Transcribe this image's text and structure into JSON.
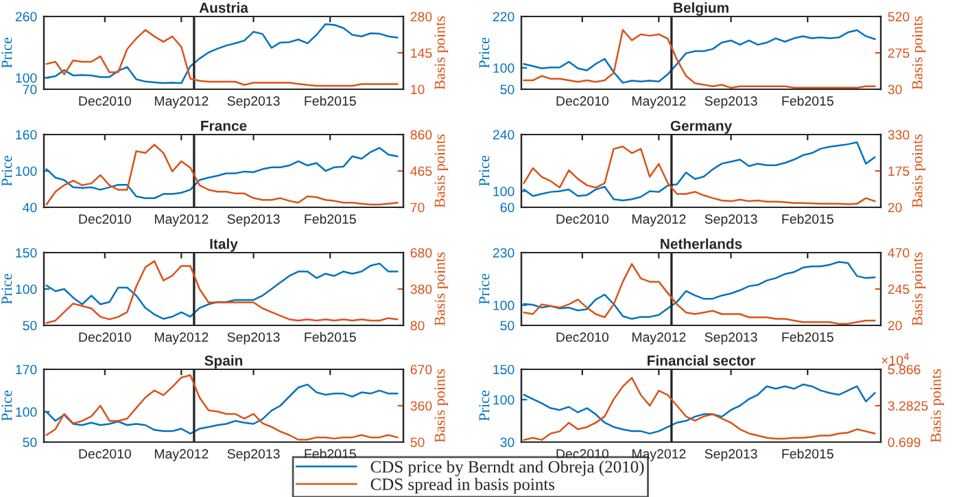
{
  "chart_data": [
    {
      "type": "line",
      "title": "Austria",
      "ylabel": "Price",
      "y2label": "Basis points",
      "legend": "bottom",
      "xlim": [
        "2009-10-15",
        "2016-06-10"
      ],
      "xticks": [
        {
          "value": "2010-12-01",
          "label": "Dec2010"
        },
        {
          "value": "2012-05-01",
          "label": "May2012"
        },
        {
          "value": "2013-09-01",
          "label": "Sep2013"
        },
        {
          "value": "2015-02-01",
          "label": "Feb2015"
        }
      ],
      "ylim": [
        70,
        260
      ],
      "yticks": [
        70,
        100,
        260
      ],
      "y2lim": [
        10,
        280
      ],
      "y2ticks": [
        10,
        145,
        280
      ],
      "ref_lines": [
        {
          "axis": "x",
          "value": "2012-07-26",
          "color": "#262626"
        }
      ],
      "x": [
        "2009-11",
        "2010-01",
        "2010-03",
        "2010-05",
        "2010-07",
        "2010-09",
        "2010-11",
        "2011-01",
        "2011-03",
        "2011-05",
        "2011-07",
        "2011-09",
        "2011-11",
        "2012-01",
        "2012-03",
        "2012-05",
        "2012-07",
        "2012-09",
        "2012-11",
        "2013-01",
        "2013-03",
        "2013-05",
        "2013-07",
        "2013-09",
        "2013-11",
        "2014-01",
        "2014-03",
        "2014-05",
        "2014-07",
        "2014-09",
        "2014-11",
        "2015-01",
        "2015-03",
        "2015-05",
        "2015-07",
        "2015-09",
        "2015-11",
        "2016-01",
        "2016-03",
        "2016-05"
      ],
      "series": [
        {
          "name": "CDS price by Berndt and Obreja (2010)",
          "color": "#0072bd",
          "values": [
            100,
            104,
            120,
            106,
            107,
            106,
            102,
            102,
            118,
            128,
            96,
            90,
            88,
            86,
            87,
            86,
            130,
            150,
            166,
            176,
            184,
            190,
            197,
            220,
            214,
            178,
            192,
            193,
            200,
            190,
            212,
            240,
            238,
            230,
            212,
            208,
            216,
            215,
            208,
            205
          ]
        },
        {
          "name": "CDS spread in basis points",
          "color": "#d95319",
          "axis": "y2",
          "values": [
            104,
            112,
            65,
            117,
            112,
            112,
            132,
            73,
            73,
            159,
            198,
            230,
            206,
            186,
            206,
            167,
            49,
            41,
            38,
            38,
            38,
            38,
            26,
            34,
            34,
            34,
            34,
            34,
            30,
            26,
            23,
            23,
            23,
            23,
            23,
            29,
            29,
            29,
            29,
            29
          ]
        }
      ]
    },
    {
      "type": "line",
      "title": "Belgium",
      "ylabel": "Price",
      "y2label": "Basis points",
      "xlim": [
        "2009-10-15",
        "2016-06-10"
      ],
      "xticks": [
        {
          "value": "2010-12-01",
          "label": "Dec2010"
        },
        {
          "value": "2012-05-01",
          "label": "May2012"
        },
        {
          "value": "2013-09-01",
          "label": "Sep2013"
        },
        {
          "value": "2015-02-01",
          "label": "Feb2015"
        }
      ],
      "ylim": [
        50,
        220
      ],
      "yticks": [
        50,
        100,
        220
      ],
      "y2lim": [
        30,
        520
      ],
      "y2ticks": [
        30,
        275,
        520
      ],
      "ref_lines": [
        {
          "axis": "x",
          "value": "2012-07-26",
          "color": "#262626"
        }
      ],
      "x": [
        "2009-11",
        "2010-01",
        "2010-03",
        "2010-05",
        "2010-07",
        "2010-09",
        "2010-11",
        "2011-01",
        "2011-03",
        "2011-05",
        "2011-07",
        "2011-09",
        "2011-11",
        "2012-01",
        "2012-03",
        "2012-05",
        "2012-07",
        "2012-09",
        "2012-11",
        "2013-01",
        "2013-03",
        "2013-05",
        "2013-07",
        "2013-09",
        "2013-11",
        "2014-01",
        "2014-03",
        "2014-05",
        "2014-07",
        "2014-09",
        "2014-11",
        "2015-01",
        "2015-03",
        "2015-05",
        "2015-07",
        "2015-09",
        "2015-11",
        "2016-01",
        "2016-03",
        "2016-05"
      ],
      "series": [
        {
          "color": "#0072bd",
          "values": [
            109,
            104,
            99,
            101,
            101,
            114,
            99,
            94,
            109,
            121,
            90,
            65,
            70,
            68,
            70,
            68,
            85,
            109,
            134,
            139,
            139,
            144,
            159,
            164,
            154,
            164,
            154,
            159,
            169,
            161,
            169,
            174,
            169,
            171,
            169,
            171,
            183,
            188,
            174,
            167
          ]
        },
        {
          "color": "#d95319",
          "axis": "y2",
          "values": [
            90,
            90,
            120,
            100,
            100,
            90,
            80,
            90,
            80,
            90,
            140,
            430,
            360,
            400,
            390,
            400,
            370,
            230,
            120,
            70,
            60,
            50,
            60,
            40,
            50,
            50,
            50,
            50,
            50,
            50,
            40,
            40,
            40,
            40,
            40,
            40,
            40,
            40,
            50,
            50
          ]
        }
      ]
    },
    {
      "type": "line",
      "title": "France",
      "ylabel": "Price",
      "y2label": "Basis points",
      "xlim": [
        "2009-10-15",
        "2016-06-10"
      ],
      "xticks": [
        {
          "value": "2010-12-01",
          "label": "Dec2010"
        },
        {
          "value": "2012-05-01",
          "label": "May2012"
        },
        {
          "value": "2013-09-01",
          "label": "Sep2013"
        },
        {
          "value": "2015-02-01",
          "label": "Feb2015"
        }
      ],
      "ylim": [
        40,
        160
      ],
      "yticks": [
        40,
        100,
        160
      ],
      "y2lim": [
        70,
        860
      ],
      "y2ticks": [
        70,
        465,
        860
      ],
      "ref_lines": [
        {
          "axis": "x",
          "value": "2012-07-26",
          "color": "#262626"
        }
      ],
      "x": [
        "2009-11",
        "2010-01",
        "2010-03",
        "2010-05",
        "2010-07",
        "2010-09",
        "2010-11",
        "2011-01",
        "2011-03",
        "2011-05",
        "2011-07",
        "2011-09",
        "2011-11",
        "2012-01",
        "2012-03",
        "2012-05",
        "2012-07",
        "2012-09",
        "2012-11",
        "2013-01",
        "2013-03",
        "2013-05",
        "2013-07",
        "2013-09",
        "2013-11",
        "2014-01",
        "2014-03",
        "2014-05",
        "2014-07",
        "2014-09",
        "2014-11",
        "2015-01",
        "2015-03",
        "2015-05",
        "2015-07",
        "2015-09",
        "2015-11",
        "2016-01",
        "2016-03",
        "2016-05"
      ],
      "series": [
        {
          "color": "#0072bd",
          "values": [
            103,
            89,
            85,
            73,
            72,
            73,
            69,
            73,
            77,
            77,
            58,
            55,
            55,
            62,
            62,
            64,
            69,
            85,
            89,
            92,
            96,
            96,
            99,
            98,
            103,
            106,
            106,
            109,
            116,
            109,
            113,
            100,
            106,
            107,
            124,
            120,
            131,
            138,
            127,
            124
          ]
        },
        {
          "color": "#d95319",
          "axis": "y2",
          "values": [
            100,
            240,
            310,
            360,
            310,
            330,
            420,
            310,
            260,
            260,
            680,
            660,
            750,
            660,
            460,
            570,
            500,
            310,
            260,
            240,
            240,
            220,
            220,
            170,
            150,
            150,
            170,
            140,
            120,
            190,
            180,
            150,
            140,
            120,
            120,
            110,
            100,
            100,
            110,
            120
          ]
        }
      ]
    },
    {
      "type": "line",
      "title": "Germany",
      "ylabel": "Price",
      "y2label": "Basis points",
      "xlim": [
        "2009-10-15",
        "2016-06-10"
      ],
      "xticks": [
        {
          "value": "2010-12-01",
          "label": "Dec2010"
        },
        {
          "value": "2012-05-01",
          "label": "May2012"
        },
        {
          "value": "2013-09-01",
          "label": "Sep2013"
        },
        {
          "value": "2015-02-01",
          "label": "Feb2015"
        }
      ],
      "ylim": [
        60,
        240
      ],
      "yticks": [
        60,
        100,
        240
      ],
      "y2lim": [
        20,
        330
      ],
      "y2ticks": [
        20,
        175,
        330
      ],
      "ref_lines": [
        {
          "axis": "x",
          "value": "2012-07-26",
          "color": "#262626"
        }
      ],
      "x": [
        "2009-11",
        "2010-01",
        "2010-03",
        "2010-05",
        "2010-07",
        "2010-09",
        "2010-11",
        "2011-01",
        "2011-03",
        "2011-05",
        "2011-07",
        "2011-09",
        "2011-11",
        "2012-01",
        "2012-03",
        "2012-05",
        "2012-07",
        "2012-09",
        "2012-11",
        "2013-01",
        "2013-03",
        "2013-05",
        "2013-07",
        "2013-09",
        "2013-11",
        "2014-01",
        "2014-03",
        "2014-05",
        "2014-07",
        "2014-09",
        "2014-11",
        "2015-01",
        "2015-03",
        "2015-05",
        "2015-07",
        "2015-09",
        "2015-11",
        "2016-01",
        "2016-03",
        "2016-05"
      ],
      "series": [
        {
          "color": "#0072bd",
          "values": [
            104,
            88,
            93,
            98,
            100,
            104,
            88,
            90,
            104,
            111,
            80,
            77,
            80,
            86,
            100,
            98,
            114,
            117,
            146,
            130,
            136,
            154,
            168,
            173,
            178,
            162,
            168,
            164,
            164,
            170,
            178,
            189,
            194,
            205,
            210,
            213,
            216,
            221,
            168,
            184
          ]
        },
        {
          "color": "#d95319",
          "axis": "y2",
          "values": [
            123,
            187,
            150,
            132,
            104,
            178,
            141,
            114,
            104,
            123,
            269,
            279,
            251,
            269,
            150,
            205,
            123,
            77,
            77,
            86,
            71,
            59,
            49,
            46,
            53,
            46,
            49,
            44,
            44,
            42,
            38,
            38,
            37,
            35,
            35,
            35,
            33,
            35,
            59,
            46
          ]
        }
      ]
    },
    {
      "type": "line",
      "title": "Italy",
      "ylabel": "Price",
      "y2label": "Basis points",
      "xlim": [
        "2009-10-15",
        "2016-06-10"
      ],
      "xticks": [
        {
          "value": "2010-12-01",
          "label": "Dec2010"
        },
        {
          "value": "2012-05-01",
          "label": "May2012"
        },
        {
          "value": "2013-09-01",
          "label": "Sep2013"
        },
        {
          "value": "2015-02-01",
          "label": "Feb2015"
        }
      ],
      "ylim": [
        50,
        150
      ],
      "yticks": [
        50,
        100,
        150
      ],
      "y2lim": [
        80,
        680
      ],
      "y2ticks": [
        80,
        380,
        680
      ],
      "ref_lines": [
        {
          "axis": "x",
          "value": "2012-07-26",
          "color": "#262626"
        }
      ],
      "x": [
        "2009-11",
        "2010-01",
        "2010-03",
        "2010-05",
        "2010-07",
        "2010-09",
        "2010-11",
        "2011-01",
        "2011-03",
        "2011-05",
        "2011-07",
        "2011-09",
        "2011-11",
        "2012-01",
        "2012-03",
        "2012-05",
        "2012-07",
        "2012-09",
        "2012-11",
        "2013-01",
        "2013-03",
        "2013-05",
        "2013-07",
        "2013-09",
        "2013-11",
        "2014-01",
        "2014-03",
        "2014-05",
        "2014-07",
        "2014-09",
        "2014-11",
        "2015-01",
        "2015-03",
        "2015-05",
        "2015-07",
        "2015-09",
        "2015-11",
        "2016-01",
        "2016-03",
        "2016-05"
      ],
      "series": [
        {
          "color": "#0072bd",
          "values": [
            105,
            97,
            100,
            88,
            79,
            91,
            79,
            82,
            102,
            102,
            91,
            74,
            65,
            59,
            62,
            68,
            62,
            74,
            79,
            82,
            82,
            85,
            85,
            85,
            91,
            100,
            109,
            118,
            124,
            124,
            115,
            121,
            118,
            124,
            121,
            124,
            132,
            135,
            124,
            124
          ]
        },
        {
          "color": "#d95319",
          "axis": "y2",
          "values": [
            100,
            120,
            190,
            260,
            240,
            220,
            150,
            130,
            150,
            190,
            400,
            560,
            610,
            450,
            490,
            570,
            570,
            380,
            270,
            270,
            270,
            270,
            270,
            270,
            220,
            190,
            160,
            130,
            120,
            130,
            120,
            130,
            120,
            130,
            120,
            130,
            120,
            120,
            140,
            130
          ]
        }
      ]
    },
    {
      "type": "line",
      "title": "Netherlands",
      "ylabel": "Price",
      "y2label": "Basis points",
      "xlim": [
        "2009-10-15",
        "2016-06-10"
      ],
      "xticks": [
        {
          "value": "2010-12-01",
          "label": "Dec2010"
        },
        {
          "value": "2012-05-01",
          "label": "May2012"
        },
        {
          "value": "2013-09-01",
          "label": "Sep2013"
        },
        {
          "value": "2015-02-01",
          "label": "Feb2015"
        }
      ],
      "ylim": [
        50,
        230
      ],
      "yticks": [
        50,
        100,
        230
      ],
      "y2lim": [
        20,
        470
      ],
      "y2ticks": [
        20,
        245,
        470
      ],
      "ref_lines": [
        {
          "axis": "x",
          "value": "2012-07-26",
          "color": "#262626"
        }
      ],
      "x": [
        "2009-11",
        "2010-01",
        "2010-03",
        "2010-05",
        "2010-07",
        "2010-09",
        "2010-11",
        "2011-01",
        "2011-03",
        "2011-05",
        "2011-07",
        "2011-09",
        "2011-11",
        "2012-01",
        "2012-03",
        "2012-05",
        "2012-07",
        "2012-09",
        "2012-11",
        "2013-01",
        "2013-03",
        "2013-05",
        "2013-07",
        "2013-09",
        "2013-11",
        "2014-01",
        "2014-03",
        "2014-05",
        "2014-07",
        "2014-09",
        "2014-11",
        "2015-01",
        "2015-03",
        "2015-05",
        "2015-07",
        "2015-09",
        "2015-11",
        "2016-01",
        "2016-03",
        "2016-05"
      ],
      "series": [
        {
          "color": "#0072bd",
          "values": [
            103,
            101,
            94,
            98,
            92,
            94,
            87,
            90,
            114,
            126,
            103,
            73,
            66,
            71,
            71,
            76,
            92,
            108,
            135,
            124,
            116,
            116,
            124,
            129,
            137,
            147,
            150,
            161,
            167,
            177,
            182,
            193,
            196,
            196,
            200,
            207,
            204,
            172,
            167,
            169
          ]
        },
        {
          "color": "#d95319",
          "axis": "y2",
          "values": [
            100,
            90,
            150,
            140,
            130,
            150,
            180,
            130,
            90,
            70,
            150,
            290,
            400,
            310,
            290,
            290,
            220,
            150,
            100,
            90,
            100,
            110,
            90,
            90,
            90,
            70,
            70,
            70,
            60,
            60,
            50,
            40,
            40,
            40,
            40,
            30,
            30,
            40,
            50,
            50
          ]
        }
      ]
    },
    {
      "type": "line",
      "title": "Spain",
      "ylabel": "Price",
      "y2label": "Basis points",
      "xlim": [
        "2009-10-15",
        "2016-06-10"
      ],
      "xticks": [
        {
          "value": "2010-12-01",
          "label": "Dec2010"
        },
        {
          "value": "2012-05-01",
          "label": "May2012"
        },
        {
          "value": "2013-09-01",
          "label": "Sep2013"
        },
        {
          "value": "2015-02-01",
          "label": "Feb2015"
        }
      ],
      "ylim": [
        50,
        170
      ],
      "yticks": [
        50,
        100,
        170
      ],
      "y2lim": [
        50,
        670
      ],
      "y2ticks": [
        50,
        360,
        670
      ],
      "ref_lines": [
        {
          "axis": "x",
          "value": "2012-07-26",
          "color": "#262626"
        }
      ],
      "x": [
        "2009-11",
        "2010-01",
        "2010-03",
        "2010-05",
        "2010-07",
        "2010-09",
        "2010-11",
        "2011-01",
        "2011-03",
        "2011-05",
        "2011-07",
        "2011-09",
        "2011-11",
        "2012-01",
        "2012-03",
        "2012-05",
        "2012-07",
        "2012-09",
        "2012-11",
        "2013-01",
        "2013-03",
        "2013-05",
        "2013-07",
        "2013-09",
        "2013-11",
        "2014-01",
        "2014-03",
        "2014-05",
        "2014-07",
        "2014-09",
        "2014-11",
        "2015-01",
        "2015-03",
        "2015-05",
        "2015-07",
        "2015-09",
        "2015-11",
        "2016-01",
        "2016-03",
        "2016-05"
      ],
      "series": [
        {
          "color": "#0072bd",
          "values": [
            100,
            85,
            95,
            80,
            78,
            82,
            78,
            80,
            84,
            78,
            80,
            78,
            70,
            68,
            68,
            72,
            64,
            72,
            75,
            78,
            80,
            85,
            82,
            80,
            88,
            102,
            110,
            125,
            140,
            145,
            132,
            128,
            130,
            130,
            125,
            132,
            130,
            135,
            130,
            130
          ]
        },
        {
          "color": "#d95319",
          "axis": "y2",
          "values": [
            110,
            160,
            290,
            210,
            230,
            270,
            360,
            230,
            230,
            250,
            340,
            430,
            490,
            450,
            520,
            600,
            620,
            430,
            320,
            310,
            290,
            290,
            250,
            290,
            210,
            180,
            140,
            110,
            70,
            70,
            90,
            90,
            80,
            90,
            90,
            110,
            90,
            90,
            110,
            90
          ]
        }
      ]
    },
    {
      "type": "line",
      "title": "Financial sector",
      "ylabel": "Price",
      "y2label": "Basis points",
      "xlim": [
        "2009-10-15",
        "2016-06-10"
      ],
      "xticks": [
        {
          "value": "2010-12-01",
          "label": "Dec2010"
        },
        {
          "value": "2012-05-01",
          "label": "May2012"
        },
        {
          "value": "2013-09-01",
          "label": "Sep2013"
        },
        {
          "value": "2015-02-01",
          "label": "Feb2015"
        }
      ],
      "ylim": [
        30,
        150
      ],
      "yticks": [
        30,
        100,
        150
      ],
      "y2lim": [
        0.699,
        5.866
      ],
      "y2ticks": [
        0.699,
        3.2825,
        5.866
      ],
      "ref_lines": [
        {
          "axis": "x",
          "value": "2012-07-26",
          "color": "#262626"
        }
      ],
      "annotations": [
        "×10$^{4}$"
      ],
      "x": [
        "2009-11",
        "2010-01",
        "2010-03",
        "2010-05",
        "2010-07",
        "2010-09",
        "2010-11",
        "2011-01",
        "2011-03",
        "2011-05",
        "2011-07",
        "2011-09",
        "2011-11",
        "2012-01",
        "2012-03",
        "2012-05",
        "2012-07",
        "2012-09",
        "2012-11",
        "2013-01",
        "2013-03",
        "2013-05",
        "2013-07",
        "2013-09",
        "2013-11",
        "2014-01",
        "2014-03",
        "2014-05",
        "2014-07",
        "2014-09",
        "2014-11",
        "2015-01",
        "2015-03",
        "2015-05",
        "2015-07",
        "2015-09",
        "2015-11",
        "2016-01",
        "2016-03",
        "2016-05"
      ],
      "series": [
        {
          "color": "#0072bd",
          "values": [
            108,
            101,
            94,
            86,
            83,
            88,
            79,
            86,
            76,
            62,
            55,
            51,
            48,
            48,
            44,
            48,
            55,
            62,
            65,
            72,
            76,
            76,
            72,
            83,
            90,
            101,
            108,
            122,
            118,
            122,
            118,
            125,
            122,
            115,
            111,
            108,
            115,
            122,
            97,
            111
          ]
        },
        {
          "color": "#d95319",
          "axis": "y2",
          "values": [
            0.85,
            1.0,
            0.85,
            1.31,
            1.46,
            2.07,
            1.61,
            1.76,
            2.07,
            2.52,
            3.74,
            4.65,
            5.26,
            4.04,
            3.28,
            4.35,
            4.04,
            3.28,
            2.52,
            2.22,
            2.52,
            2.67,
            2.37,
            2.07,
            1.61,
            1.31,
            1.16,
            1.0,
            0.94,
            0.94,
            1.0,
            1.0,
            1.06,
            1.16,
            1.16,
            1.31,
            1.37,
            1.61,
            1.46,
            1.31
          ]
        }
      ]
    }
  ]
}
